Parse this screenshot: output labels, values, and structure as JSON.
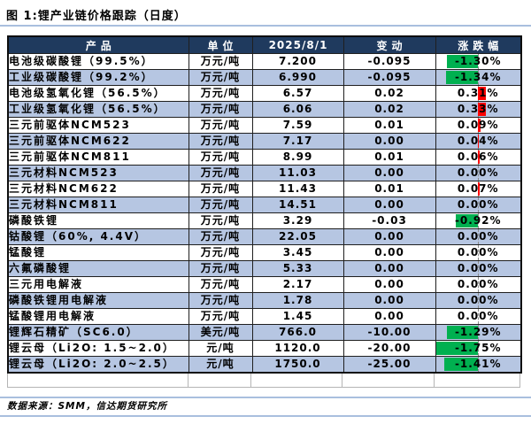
{
  "title": "图 1:锂产业链价格跟踪（日度）",
  "table": {
    "columns": [
      "产品",
      "单位",
      "2025/8/1",
      "变动",
      "涨跌幅"
    ],
    "rows": [
      {
        "product": "电池级碳酸锂（99.5%）",
        "unit": "万元/吨",
        "price": "7.200",
        "change": "-0.095",
        "pct": "-1.30%"
      },
      {
        "product": "工业级碳酸锂（99.2%）",
        "unit": "万元/吨",
        "price": "6.990",
        "change": "-0.095",
        "pct": "-1.34%"
      },
      {
        "product": "电池级氢氧化锂（56.5%）",
        "unit": "万元/吨",
        "price": "6.57",
        "change": "0.02",
        "pct": "0.31%"
      },
      {
        "product": "工业级氢氧化锂（56.5%）",
        "unit": "万元/吨",
        "price": "6.06",
        "change": "0.02",
        "pct": "0.33%"
      },
      {
        "product": "三元前驱体NCM523",
        "unit": "万元/吨",
        "price": "7.59",
        "change": "0.01",
        "pct": "0.09%"
      },
      {
        "product": "三元前驱体NCM622",
        "unit": "万元/吨",
        "price": "7.17",
        "change": "0.00",
        "pct": "0.04%"
      },
      {
        "product": "三元前驱体NCM811",
        "unit": "万元/吨",
        "price": "8.99",
        "change": "0.01",
        "pct": "0.06%"
      },
      {
        "product": "三元材料NCM523",
        "unit": "万元/吨",
        "price": "11.03",
        "change": "0.00",
        "pct": "0.00%"
      },
      {
        "product": "三元材料NCM622",
        "unit": "万元/吨",
        "price": "11.43",
        "change": "0.01",
        "pct": "0.07%"
      },
      {
        "product": "三元材料NCM811",
        "unit": "万元/吨",
        "price": "14.51",
        "change": "0.00",
        "pct": "0.00%"
      },
      {
        "product": "磷酸铁锂",
        "unit": "万元/吨",
        "price": "3.29",
        "change": "-0.03",
        "pct": "-0.92%"
      },
      {
        "product": "钴酸锂（60%, 4.4V）",
        "unit": "万元/吨",
        "price": "22.05",
        "change": "0.00",
        "pct": "0.00%"
      },
      {
        "product": "锰酸锂",
        "unit": "万元/吨",
        "price": "3.45",
        "change": "0.00",
        "pct": "0.00%"
      },
      {
        "product": "六氟磷酸锂",
        "unit": "万元/吨",
        "price": "5.33",
        "change": "0.00",
        "pct": "0.00%"
      },
      {
        "product": "三元用电解液",
        "unit": "万元/吨",
        "price": "2.17",
        "change": "0.00",
        "pct": "0.00%"
      },
      {
        "product": "磷酸铁锂用电解液",
        "unit": "万元/吨",
        "price": "1.78",
        "change": "0.00",
        "pct": "0.00%"
      },
      {
        "product": "锰酸锂用电解液",
        "unit": "万元/吨",
        "price": "1.45",
        "change": "0.00",
        "pct": "0.00%"
      },
      {
        "product": "锂辉石精矿（SC6.0）",
        "unit": "美元/吨",
        "price": "766.0",
        "change": "-10.00",
        "pct": "-1.29%"
      },
      {
        "product": "锂云母（Li2O: 1.5~2.0）",
        "unit": "元/吨",
        "price": "1120.0",
        "change": "-20.00",
        "pct": "-1.75%"
      },
      {
        "product": "锂云母（Li2O: 2.0~2.5）",
        "unit": "元/吨",
        "price": "1750.0",
        "change": "-25.00",
        "pct": "-1.41%"
      }
    ]
  },
  "bar_scale_abs_max_pct": 1.75,
  "footer": {
    "source": "数据来源：SMM，信达期货研究所"
  },
  "colors": {
    "header_bg": "#1F3A5E",
    "header_text": "#FFFFFF",
    "row_alt_bg": "#B6C6E2",
    "up_bar": "#FF0000",
    "down_bar": "#00B050",
    "divider": "#A9BFDE"
  }
}
